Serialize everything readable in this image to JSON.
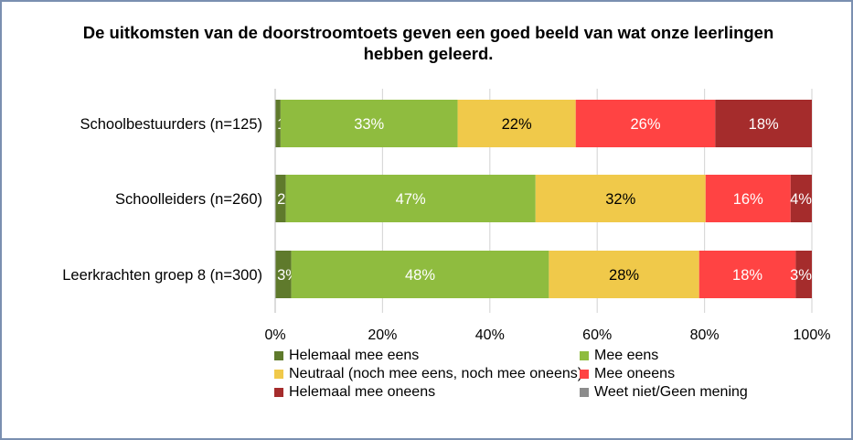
{
  "chart_data": {
    "type": "bar",
    "orientation": "horizontal",
    "stacked": "percent",
    "title": "De uitkomsten van de doorstroomtoets geven een goed beeld van wat onze leerlingen hebben geleerd.",
    "categories": [
      "Schoolbestuurders (n=125)",
      "Schoolleiders (n=260)",
      "Leerkrachten groep 8 (n=300)"
    ],
    "series": [
      {
        "name": "Helemaal mee eens",
        "color": "#5f7a2c",
        "values": [
          1,
          2,
          3
        ],
        "label_color": "#ffffff"
      },
      {
        "name": "Mee eens",
        "color": "#8fbc3f",
        "values": [
          33,
          47,
          48
        ],
        "label_color": "#ffffff"
      },
      {
        "name": "Neutraal (noch mee eens, noch mee oneens)",
        "color": "#f0c94a",
        "values": [
          22,
          32,
          28
        ],
        "label_color": "#000000"
      },
      {
        "name": "Mee oneens",
        "color": "#ff4343",
        "values": [
          26,
          16,
          18
        ],
        "label_color": "#ffffff"
      },
      {
        "name": "Helemaal mee oneens",
        "color": "#a52c2c",
        "values": [
          18,
          4,
          3
        ],
        "label_color": "#ffffff"
      },
      {
        "name": "Weet niet/Geen mening",
        "color": "#8c8c8c",
        "values": [
          0,
          0,
          0
        ],
        "label_color": "#ffffff"
      }
    ],
    "xticks": [
      "0%",
      "20%",
      "40%",
      "60%",
      "80%",
      "100%"
    ],
    "xlim": [
      0,
      100
    ],
    "grid": true,
    "legend_position": "bottom"
  }
}
